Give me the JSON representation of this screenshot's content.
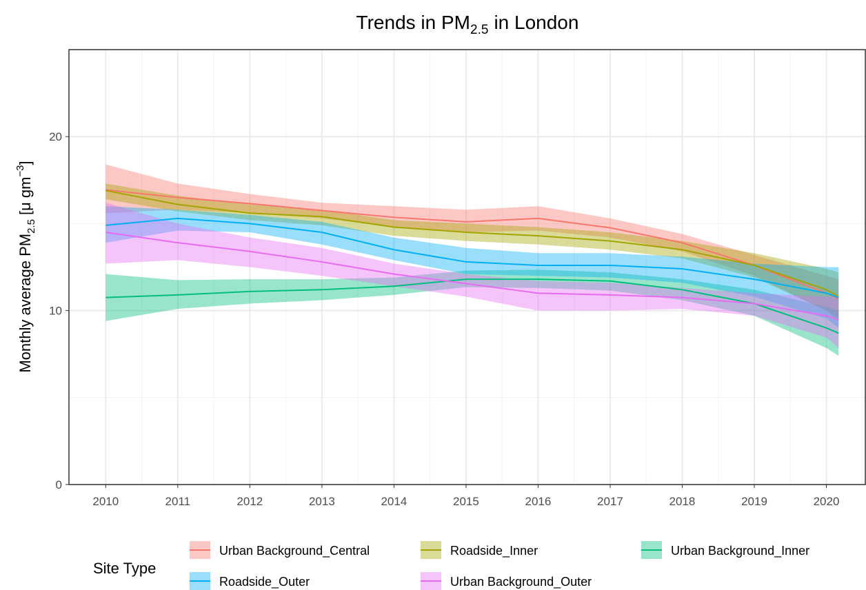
{
  "chart_data": {
    "type": "ribbon-line",
    "title": [
      "Trends in PM",
      "2.5",
      "in London"
    ],
    "y_label": [
      "Monthly average PM",
      "2.5",
      "[μ gm",
      "−3",
      "]"
    ],
    "legend_title": "Site Type",
    "x": [
      2010,
      2011,
      2012,
      2013,
      2014,
      2015,
      2016,
      2017,
      2018,
      2019,
      2020,
      2020.17
    ],
    "xlim": [
      2009.49,
      2020.55
    ],
    "xticks": [
      2010,
      2011,
      2012,
      2013,
      2014,
      2015,
      2016,
      2017,
      2018,
      2019,
      2020
    ],
    "xminor": [
      2010.5,
      2011.5,
      2012.5,
      2013.5,
      2014.5,
      2015.5,
      2016.5,
      2017.5,
      2018.5,
      2019.5,
      2020.5
    ],
    "ylim": [
      0,
      25
    ],
    "yticks": [
      0,
      10,
      20
    ],
    "yminor": [
      5,
      15,
      25
    ],
    "grid": true,
    "series": [
      {
        "name": "Urban Background_Central",
        "color": "#F8766D",
        "values": [
          16.94,
          16.5,
          16.15,
          15.75,
          15.36,
          15.1,
          15.3,
          14.76,
          13.9,
          12.6,
          11.0,
          10.7
        ],
        "upper": [
          18.4,
          17.3,
          16.7,
          16.2,
          16.0,
          15.8,
          16.0,
          15.3,
          14.4,
          13.2,
          12.0,
          11.8
        ],
        "lower": [
          15.6,
          15.8,
          15.6,
          15.3,
          14.8,
          14.5,
          14.6,
          14.2,
          13.4,
          12.0,
          10.0,
          9.6
        ]
      },
      {
        "name": "Roadside_Inner",
        "color": "#A3A500",
        "values": [
          16.9,
          16.1,
          15.6,
          15.4,
          14.8,
          14.5,
          14.3,
          14.0,
          13.5,
          12.6,
          11.2,
          10.8
        ],
        "upper": [
          17.3,
          16.6,
          16.1,
          15.8,
          15.2,
          15.0,
          14.8,
          14.5,
          14.0,
          13.3,
          12.4,
          12.2
        ],
        "lower": [
          16.4,
          15.7,
          15.2,
          14.9,
          14.3,
          14.0,
          13.8,
          13.5,
          13.0,
          11.9,
          10.0,
          9.4
        ]
      },
      {
        "name": "Urban Background_Inner",
        "color": "#00BF7D",
        "values": [
          10.75,
          10.9,
          11.1,
          11.2,
          11.4,
          11.8,
          11.8,
          11.7,
          11.2,
          10.4,
          9.0,
          8.7
        ],
        "upper": [
          12.1,
          11.75,
          11.8,
          11.8,
          11.9,
          12.3,
          12.35,
          12.2,
          11.8,
          11.2,
          10.2,
          10.0
        ],
        "lower": [
          9.4,
          10.1,
          10.4,
          10.6,
          10.9,
          11.35,
          11.3,
          11.15,
          10.6,
          9.7,
          7.85,
          7.4
        ]
      },
      {
        "name": "Roadside_Outer",
        "color": "#00B0F6",
        "values": [
          14.9,
          15.3,
          15.0,
          14.5,
          13.5,
          12.8,
          12.6,
          12.6,
          12.4,
          11.8,
          11.0,
          10.75
        ],
        "upper": [
          16.0,
          15.8,
          15.5,
          15.1,
          14.2,
          13.6,
          13.3,
          13.3,
          13.1,
          12.7,
          12.5,
          12.5
        ],
        "lower": [
          13.9,
          14.6,
          14.5,
          13.8,
          12.9,
          12.1,
          12.0,
          11.9,
          11.6,
          10.8,
          9.55,
          9.0
        ]
      },
      {
        "name": "Urban Background_Outer",
        "color": "#E76BF3",
        "values": [
          14.5,
          13.9,
          13.4,
          12.8,
          12.1,
          11.55,
          11.0,
          10.9,
          10.75,
          10.4,
          9.7,
          9.45
        ],
        "upper": [
          16.2,
          15.0,
          14.2,
          13.6,
          12.7,
          12.1,
          11.7,
          11.6,
          11.3,
          11.0,
          10.8,
          10.75
        ],
        "lower": [
          12.7,
          12.9,
          12.5,
          12.0,
          11.4,
          10.8,
          10.0,
          10.0,
          10.1,
          9.7,
          8.45,
          7.85
        ]
      }
    ]
  }
}
